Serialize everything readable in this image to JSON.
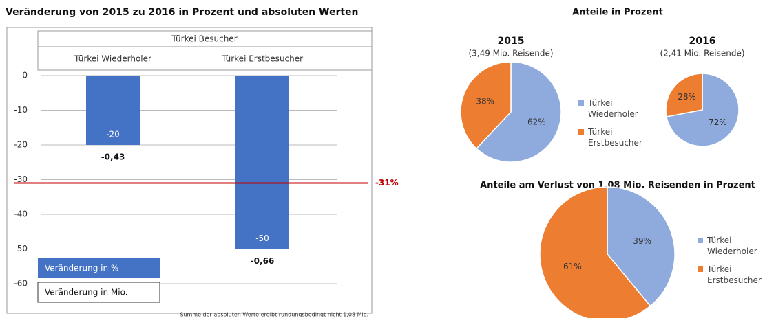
{
  "chart_data": [
    {
      "type": "bar",
      "title": "Veränderung von 2015 zu 2016 in Prozent und absoluten Werten",
      "group_label": "Türkei Besucher",
      "categories": [
        "Türkei Wiederholer",
        "Türkei Erstbesucher"
      ],
      "values": [
        -20,
        -50
      ],
      "color": "#4472c4",
      "abs_values": [
        -0.43,
        -0.66
      ],
      "abs_labels": [
        "-0,43",
        "-0,66"
      ],
      "reference": {
        "value": -31,
        "label": "-31%",
        "color": "#c00000"
      },
      "legend": [
        "Veränderung in %",
        "Veränderung in Mio."
      ],
      "footnote": "Summe der absoluten Werte ergibt rundungsbedingt nicht 1,08 Mio.",
      "ylim": [
        -60,
        0
      ],
      "yticks": [
        0,
        -10,
        -20,
        -30,
        -40,
        -50,
        -60
      ],
      "grid": true
    },
    {
      "type": "pie",
      "heading": "Anteile in Prozent",
      "title": "2015",
      "subtitle": "(3,49 Mio. Reisende)",
      "categories": [
        "Türkei Wiederholer",
        "Türkei Erstbesucher"
      ],
      "values": [
        62,
        38
      ],
      "value_labels": [
        "62%",
        "38%"
      ],
      "colors": [
        "#8faadc",
        "#ed7d31"
      ]
    },
    {
      "type": "pie",
      "title": "2016",
      "subtitle": "(2,41 Mio. Reisende)",
      "values": [
        72,
        28
      ],
      "value_labels": [
        "72%",
        "28%"
      ],
      "colors": [
        "#8faadc",
        "#ed7d31"
      ]
    },
    {
      "type": "pie",
      "heading": "Anteile am Verlust von 1,08 Mio. Reisenden in Prozent",
      "categories": [
        "Türkei Wiederholer",
        "Türkei Erstbesucher"
      ],
      "values": [
        39,
        61
      ],
      "value_labels": [
        "39%",
        "61%"
      ],
      "colors": [
        "#8faadc",
        "#ed7d31"
      ]
    }
  ]
}
